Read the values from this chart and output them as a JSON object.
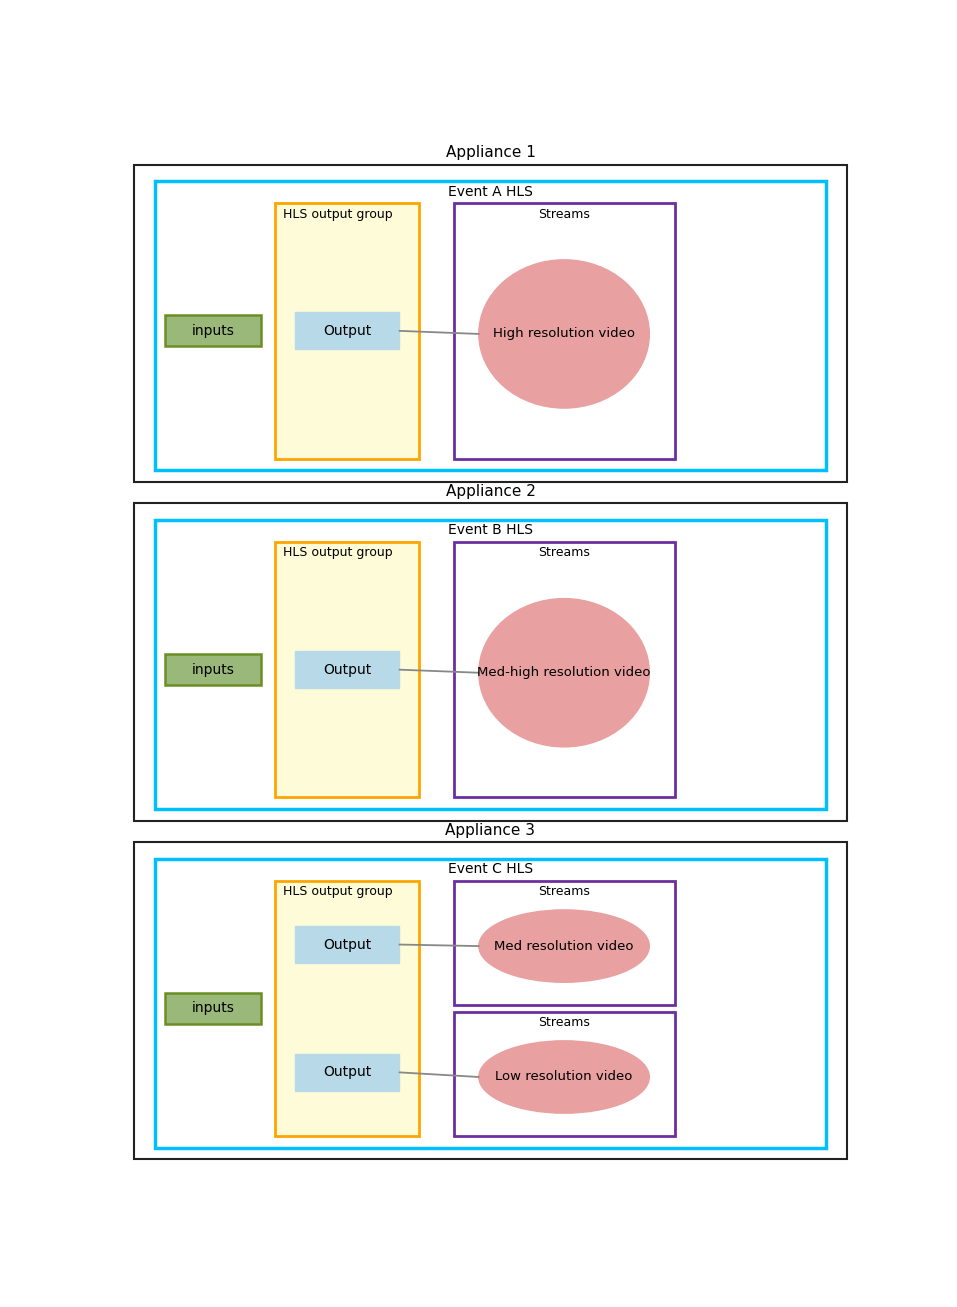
{
  "appliances": [
    {
      "title": "Appliance 1",
      "event_label": "Event A HLS",
      "hls_label": "HLS output group",
      "outputs": [
        "Output"
      ],
      "streams": [
        {
          "label": "Streams",
          "video": "High resolution video"
        }
      ]
    },
    {
      "title": "Appliance 2",
      "event_label": "Event B HLS",
      "hls_label": "HLS output group",
      "outputs": [
        "Output"
      ],
      "streams": [
        {
          "label": "Streams",
          "video": "Med-high resolution video"
        }
      ]
    },
    {
      "title": "Appliance 3",
      "event_label": "Event C HLS",
      "hls_label": "HLS output group",
      "outputs": [
        "Output",
        "Output"
      ],
      "streams": [
        {
          "label": "Streams",
          "video": "Med resolution video"
        },
        {
          "label": "Streams",
          "video": "Low resolution video"
        }
      ]
    }
  ],
  "bg_color": "#FFFFFF",
  "colors": {
    "appliance_border": "#222222",
    "appliance_bg": "#FFFFFF",
    "event_border": "#00BFFF",
    "event_bg": "#FFFFFF",
    "hls_border": "#FFA500",
    "hls_bg": "#FEFBD8",
    "output_bg": "#B8D9E8",
    "output_border": "#B8D9E8",
    "inputs_bg": "#9AB87A",
    "inputs_border": "#6B8E23",
    "streams_border": "#6B2FA0",
    "streams_bg": "#FFFFFF",
    "ellipse_fill": "#E8A0A0",
    "ellipse_edge": "#E8A0A0",
    "connector": "#888888"
  }
}
